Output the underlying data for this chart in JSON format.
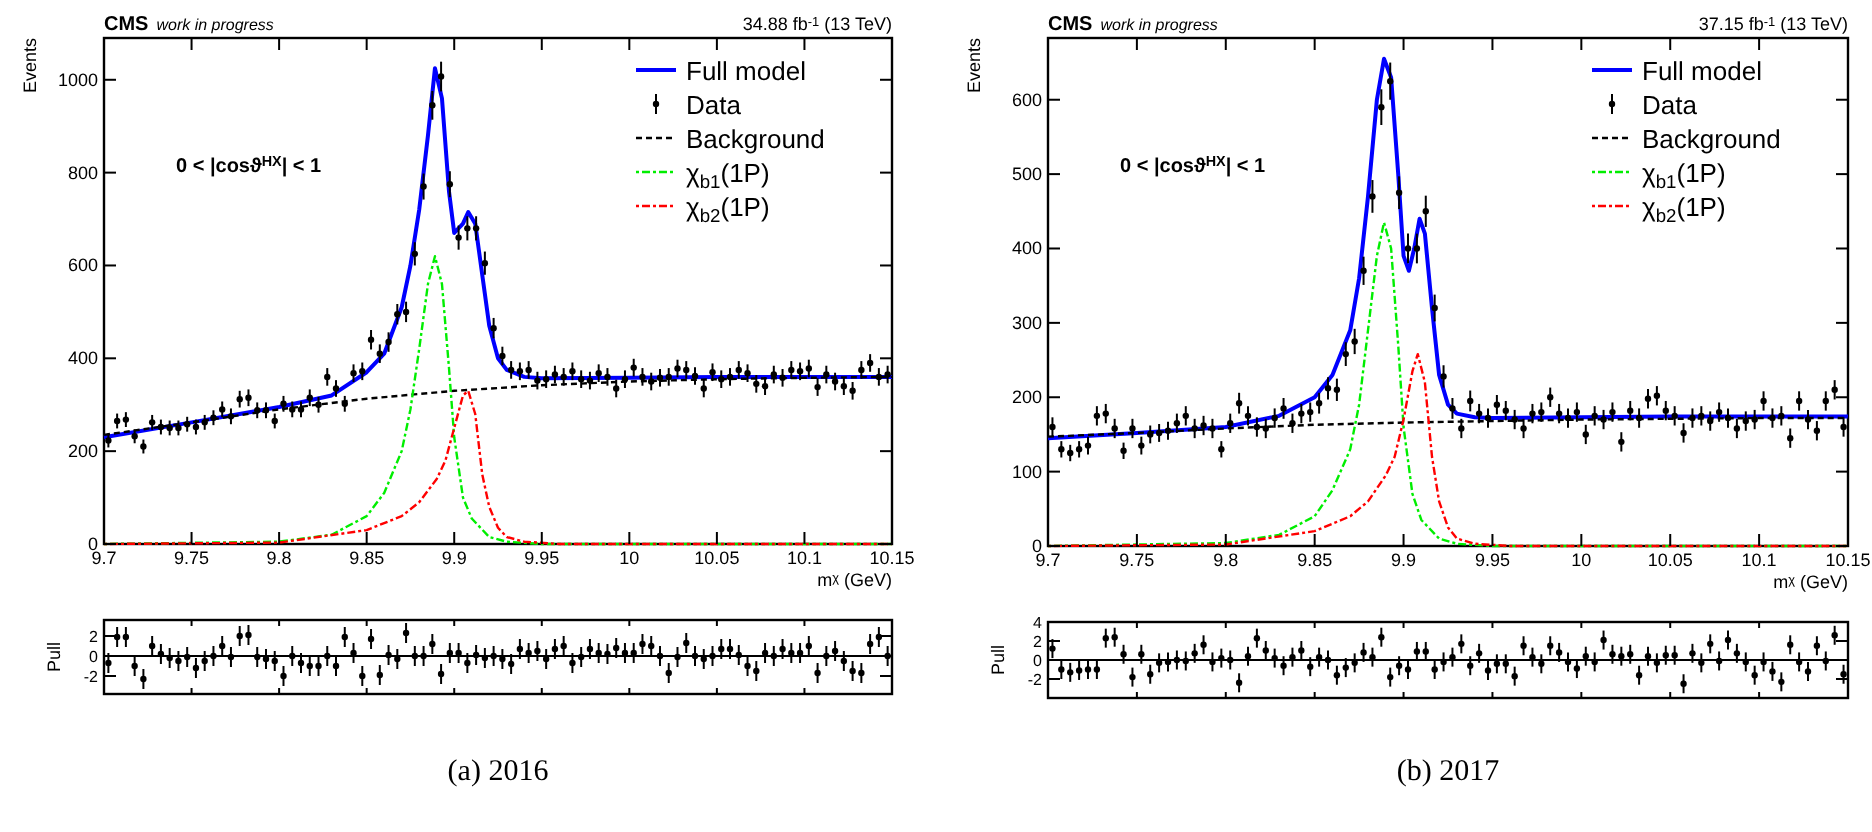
{
  "chart_data": [
    {
      "type": "scatter",
      "title": "CMS",
      "subtitle": "work in progress",
      "xlabel": "m$^{χ}$ (GeV)",
      "ylabel": "Events",
      "annotations": [
        "34.88 fb$^{-1}$ (13 TeV)",
        "0 < |cosϑ$^{HX}$| < 1",
        "(a) 2016"
      ],
      "xlim": [
        9.7,
        10.15
      ],
      "xticks": [
        9.7,
        9.75,
        9.8,
        9.85,
        9.9,
        9.95,
        10,
        10.05,
        10.1,
        10.15
      ],
      "ylim": [
        0,
        1090
      ],
      "yticks": [
        0,
        200,
        400,
        600,
        800,
        1000
      ],
      "legend": "top right",
      "series": [
        {
          "name": "Full model",
          "type": "line",
          "color": "#0000ff",
          "line_style": "solid",
          "x": [
            9.7,
            9.75,
            9.8,
            9.83,
            9.85,
            9.86,
            9.87,
            9.875,
            9.88,
            9.885,
            9.889,
            9.893,
            9.897,
            9.9,
            9.905,
            9.908,
            9.912,
            9.916,
            9.92,
            9.925,
            9.93,
            9.94,
            9.95,
            10,
            10.05,
            10.1,
            10.15
          ],
          "values": [
            230,
            262,
            295,
            320,
            370,
            410,
            510,
            600,
            720,
            880,
            1025,
            960,
            760,
            670,
            690,
            715,
            690,
            580,
            470,
            400,
            375,
            360,
            357,
            358,
            360,
            360,
            360
          ]
        },
        {
          "name": "Data",
          "color": "#000000",
          "marker": "circle",
          "x": [
            9.7025,
            9.7075,
            9.7125,
            9.7175,
            9.7225,
            9.7275,
            9.7325,
            9.7375,
            9.7425,
            9.7475,
            9.7525,
            9.7575,
            9.7625,
            9.7675,
            9.7725,
            9.7775,
            9.7825,
            9.7875,
            9.7925,
            9.7975,
            9.8025,
            9.8075,
            9.8125,
            9.8175,
            9.8225,
            9.8275,
            9.8325,
            9.8375,
            9.8425,
            9.8475,
            9.8525,
            9.8575,
            9.8625,
            9.8675,
            9.8725,
            9.8775,
            9.8825,
            9.8875,
            9.8925,
            9.8975,
            9.9025,
            9.9075,
            9.9125,
            9.9175,
            9.9225,
            9.9275,
            9.9325,
            9.9375,
            9.9425,
            9.9475,
            9.9525,
            9.9575,
            9.9625,
            9.9675,
            9.9725,
            9.9775,
            9.9825,
            9.9875,
            9.9925,
            9.9975,
            10.0025,
            10.0075,
            10.0125,
            10.0175,
            10.0225,
            10.0275,
            10.0325,
            10.0375,
            10.0425,
            10.0475,
            10.0525,
            10.0575,
            10.0625,
            10.0675,
            10.0725,
            10.0775,
            10.0825,
            10.0875,
            10.0925,
            10.0975,
            10.1025,
            10.1075,
            10.1125,
            10.1175,
            10.1225,
            10.1275,
            10.1325,
            10.1375,
            10.1425,
            10.1475
          ],
          "values": [
            223,
            265,
            268,
            232,
            210,
            262,
            252,
            250,
            250,
            258,
            252,
            262,
            272,
            290,
            275,
            312,
            315,
            288,
            288,
            265,
            302,
            290,
            290,
            315,
            300,
            360,
            335,
            302,
            368,
            372,
            440,
            410,
            435,
            495,
            500,
            625,
            770,
            945,
            1007,
            775,
            660,
            680,
            680,
            605,
            465,
            405,
            375,
            372,
            375,
            352,
            355,
            365,
            360,
            372,
            355,
            352,
            368,
            360,
            335,
            355,
            380,
            360,
            350,
            358,
            360,
            378,
            375,
            362,
            335,
            370,
            355,
            360,
            375,
            368,
            345,
            340,
            365,
            358,
            375,
            372,
            378,
            338,
            365,
            350,
            340,
            330,
            375,
            390,
            360,
            365
          ],
          "errors": [
            15,
            16,
            16,
            15,
            15,
            16,
            16,
            16,
            16,
            16,
            16,
            16,
            16,
            17,
            17,
            18,
            18,
            17,
            17,
            16,
            17,
            17,
            17,
            18,
            17,
            19,
            18,
            17,
            19,
            19,
            21,
            20,
            21,
            22,
            22,
            25,
            28,
            31,
            32,
            28,
            26,
            26,
            26,
            25,
            22,
            20,
            19,
            19,
            19,
            19,
            19,
            19,
            19,
            19,
            19,
            19,
            19,
            19,
            19,
            19,
            19,
            19,
            19,
            19,
            19,
            19,
            19,
            19,
            19,
            19,
            19,
            19,
            19,
            19,
            19,
            19,
            19,
            19,
            19,
            19,
            19,
            19,
            19,
            19,
            19,
            19,
            19,
            19,
            19,
            19
          ]
        },
        {
          "name": "Background",
          "type": "line",
          "color": "#000000",
          "line_style": "dashed",
          "x": [
            9.7,
            9.75,
            9.8,
            9.85,
            9.9,
            9.95,
            10,
            10.05,
            10.1,
            10.15
          ],
          "values": [
            235,
            262,
            290,
            313,
            330,
            342,
            350,
            355,
            358,
            360
          ]
        },
        {
          "name": "χ$_{b1}$(1P)",
          "type": "line",
          "color": "#00ee00",
          "line_style": "dotted",
          "x": [
            9.7,
            9.8,
            9.83,
            9.85,
            9.86,
            9.87,
            9.875,
            9.88,
            9.885,
            9.889,
            9.893,
            9.897,
            9.9,
            9.905,
            9.91,
            9.92,
            9.93,
            9.95,
            10.15
          ],
          "values": [
            0,
            5,
            20,
            60,
            110,
            200,
            290,
            420,
            560,
            620,
            560,
            380,
            230,
            100,
            55,
            15,
            5,
            0,
            0
          ]
        },
        {
          "name": "χ$_{b2}$(1P)",
          "type": "line",
          "color": "#ff0000",
          "line_style": "dotted",
          "x": [
            9.7,
            9.8,
            9.85,
            9.87,
            9.88,
            9.89,
            9.895,
            9.9,
            9.905,
            9.908,
            9.912,
            9.916,
            9.92,
            9.925,
            9.93,
            9.94,
            9.96,
            10.15
          ],
          "values": [
            0,
            3,
            30,
            60,
            90,
            140,
            180,
            250,
            320,
            330,
            280,
            150,
            80,
            35,
            15,
            5,
            0,
            0
          ]
        }
      ]
    },
    {
      "type": "scatter",
      "ylabel": "Pull",
      "xlim": [
        9.7,
        10.15
      ],
      "xticks": [
        9.7,
        9.75,
        9.8,
        9.85,
        9.9,
        9.95,
        10,
        10.05,
        10.1,
        10.15
      ],
      "ylim": [
        -3.8,
        3.6
      ],
      "yticks": [
        -2,
        0,
        2
      ],
      "tick_labels": "y",
      "ref_lines": [
        {
          "axis": "y",
          "value": 0,
          "color": "#000000"
        }
      ],
      "series": [
        {
          "color": "#000000",
          "marker": "circle",
          "x": [
            9.7025,
            9.7075,
            9.7125,
            9.7175,
            9.7225,
            9.7275,
            9.7325,
            9.7375,
            9.7425,
            9.7475,
            9.7525,
            9.7575,
            9.7625,
            9.7675,
            9.7725,
            9.7775,
            9.7825,
            9.7875,
            9.7925,
            9.7975,
            9.8025,
            9.8075,
            9.8125,
            9.8175,
            9.8225,
            9.8275,
            9.8325,
            9.8375,
            9.8425,
            9.8475,
            9.8525,
            9.8575,
            9.8625,
            9.8675,
            9.8725,
            9.8775,
            9.8825,
            9.8875,
            9.8925,
            9.8975,
            9.9025,
            9.9075,
            9.9125,
            9.9175,
            9.9225,
            9.9275,
            9.9325,
            9.9375,
            9.9425,
            9.9475,
            9.9525,
            9.9575,
            9.9625,
            9.9675,
            9.9725,
            9.9775,
            9.9825,
            9.9875,
            9.9925,
            9.9975,
            10.0025,
            10.0075,
            10.0125,
            10.0175,
            10.0225,
            10.0275,
            10.0325,
            10.0375,
            10.0425,
            10.0475,
            10.0525,
            10.0575,
            10.0625,
            10.0675,
            10.0725,
            10.0775,
            10.0825,
            10.0875,
            10.0925,
            10.0975,
            10.1025,
            10.1075,
            10.1125,
            10.1175,
            10.1225,
            10.1275,
            10.1325,
            10.1375,
            10.1425,
            10.1475
          ],
          "values": [
            -0.7,
            1.9,
            1.9,
            -1,
            -2.3,
            1,
            0.2,
            -0.2,
            -0.5,
            -0.1,
            -1.2,
            -0.5,
            0,
            1,
            -0.1,
            2,
            2.1,
            -0.1,
            -0.3,
            -0.5,
            -2,
            0,
            -0.7,
            -1,
            -1,
            0,
            -1,
            1.9,
            0.3,
            -2,
            1.7,
            -1.9,
            0.1,
            -0.3,
            2.3,
            0,
            0,
            1.2,
            -1.8,
            0.3,
            0.3,
            -0.7,
            0.1,
            -0.2,
            0,
            -0.3,
            -0.8,
            0.7,
            0.3,
            0.5,
            -0.3,
            0.7,
            1,
            -0.7,
            -0.1,
            0.7,
            0.3,
            0.2,
            0.8,
            0.3,
            0.3,
            1.2,
            1,
            0,
            -1.7,
            -0.1,
            1.3,
            0,
            -0.3,
            0,
            0.7,
            0.7,
            0.1,
            -1,
            -1.5,
            0.3,
            0,
            0.7,
            0.3,
            0.3,
            1,
            -1.7,
            0,
            0.5,
            -0.5,
            -1.5,
            -1.7,
            1.2,
            1.9,
            0
          ],
          "errors": [
            1,
            1,
            1,
            1,
            1,
            1,
            1,
            1,
            1,
            1,
            1,
            1,
            1,
            1,
            1,
            1,
            1,
            1,
            1,
            1,
            1,
            1,
            1,
            1,
            1,
            1,
            1,
            1,
            1,
            1,
            1,
            1,
            1,
            1,
            1,
            1,
            1,
            1,
            1,
            1,
            1,
            1,
            1,
            1,
            1,
            1,
            1,
            1,
            1,
            1,
            1,
            1,
            1,
            1,
            1,
            1,
            1,
            1,
            1,
            1,
            1,
            1,
            1,
            1,
            1,
            1,
            1,
            1,
            1,
            1,
            1,
            1,
            1,
            1,
            1,
            1,
            1,
            1,
            1,
            1,
            1,
            1,
            1,
            1,
            1,
            1,
            1,
            1,
            1,
            1
          ]
        }
      ]
    },
    {
      "type": "scatter",
      "title": "CMS",
      "subtitle": "work in progress",
      "xlabel": "m$^{χ}$ (GeV)",
      "ylabel": "Events",
      "annotations": [
        "37.15 fb$^{-1}$ (13 TeV)",
        "0 < |cosϑ$^{HX}$| < 1",
        "(b) 2017"
      ],
      "xlim": [
        9.7,
        10.15
      ],
      "xticks": [
        9.7,
        9.75,
        9.8,
        9.85,
        9.9,
        9.95,
        10,
        10.05,
        10.1,
        10.15
      ],
      "ylim": [
        0,
        683
      ],
      "yticks": [
        0,
        100,
        200,
        300,
        400,
        500,
        600
      ],
      "legend": "top right",
      "series": [
        {
          "name": "Full model",
          "type": "line",
          "color": "#0000ff",
          "line_style": "solid",
          "x": [
            9.7,
            9.75,
            9.8,
            9.83,
            9.85,
            9.86,
            9.87,
            9.875,
            9.88,
            9.885,
            9.889,
            9.893,
            9.897,
            9.9,
            9.903,
            9.906,
            9.909,
            9.912,
            9.916,
            9.92,
            9.925,
            9.93,
            9.94,
            9.95,
            10,
            10.05,
            10.1,
            10.15
          ],
          "values": [
            145,
            152,
            160,
            175,
            200,
            230,
            290,
            360,
            470,
            600,
            655,
            630,
            500,
            390,
            370,
            400,
            440,
            420,
            320,
            230,
            190,
            178,
            173,
            172,
            173,
            174,
            174,
            174
          ]
        },
        {
          "name": "Data",
          "color": "#000000",
          "marker": "circle",
          "x": [
            9.7025,
            9.7075,
            9.7125,
            9.7175,
            9.7225,
            9.7275,
            9.7325,
            9.7375,
            9.7425,
            9.7475,
            9.7525,
            9.7575,
            9.7625,
            9.7675,
            9.7725,
            9.7775,
            9.7825,
            9.7875,
            9.7925,
            9.7975,
            9.8025,
            9.8075,
            9.8125,
            9.8175,
            9.8225,
            9.8275,
            9.8325,
            9.8375,
            9.8425,
            9.8475,
            9.8525,
            9.8575,
            9.8625,
            9.8675,
            9.8725,
            9.8775,
            9.8825,
            9.8875,
            9.8925,
            9.8975,
            9.9025,
            9.9075,
            9.9125,
            9.9175,
            9.9225,
            9.9275,
            9.9325,
            9.9375,
            9.9425,
            9.9475,
            9.9525,
            9.9575,
            9.9625,
            9.9675,
            9.9725,
            9.9775,
            9.9825,
            9.9875,
            9.9925,
            9.9975,
            10.0025,
            10.0075,
            10.0125,
            10.0175,
            10.0225,
            10.0275,
            10.0325,
            10.0375,
            10.0425,
            10.0475,
            10.0525,
            10.0575,
            10.0625,
            10.0675,
            10.0725,
            10.0775,
            10.0825,
            10.0875,
            10.0925,
            10.0975,
            10.1025,
            10.1075,
            10.1125,
            10.1175,
            10.1225,
            10.1275,
            10.1325,
            10.1375,
            10.1425,
            10.1475
          ],
          "values": [
            160,
            130,
            125,
            130,
            135,
            175,
            178,
            158,
            128,
            158,
            135,
            150,
            152,
            155,
            165,
            175,
            158,
            162,
            158,
            130,
            165,
            192,
            175,
            160,
            158,
            172,
            185,
            165,
            178,
            180,
            192,
            212,
            210,
            258,
            275,
            370,
            470,
            590,
            625,
            475,
            400,
            400,
            450,
            320,
            228,
            185,
            158,
            195,
            178,
            172,
            190,
            182,
            170,
            158,
            178,
            180,
            200,
            178,
            172,
            180,
            150,
            175,
            170,
            180,
            140,
            182,
            172,
            198,
            202,
            182,
            175,
            152,
            172,
            175,
            168,
            180,
            172,
            158,
            168,
            170,
            195,
            172,
            175,
            145,
            195,
            170,
            155,
            195,
            210,
            160
          ],
          "errors": [
            13,
            11,
            11,
            11,
            12,
            13,
            13,
            13,
            11,
            13,
            12,
            12,
            12,
            12,
            13,
            13,
            13,
            13,
            13,
            11,
            13,
            14,
            13,
            13,
            13,
            13,
            14,
            13,
            13,
            13,
            14,
            15,
            15,
            16,
            17,
            19,
            22,
            24,
            25,
            22,
            20,
            20,
            21,
            18,
            15,
            14,
            13,
            14,
            13,
            13,
            13,
            13,
            13,
            13,
            13,
            13,
            13,
            13,
            13,
            13,
            13,
            13,
            13,
            13,
            13,
            13,
            13,
            13,
            13,
            13,
            13,
            13,
            13,
            13,
            13,
            13,
            13,
            13,
            13,
            13,
            13,
            13,
            13,
            13,
            13,
            13,
            13,
            13,
            13,
            13
          ]
        },
        {
          "name": "Background",
          "type": "line",
          "color": "#000000",
          "line_style": "dashed",
          "x": [
            9.7,
            9.75,
            9.8,
            9.85,
            9.9,
            9.95,
            10,
            10.05,
            10.1,
            10.15
          ],
          "values": [
            147,
            152,
            158,
            163,
            166,
            168,
            170,
            171,
            172,
            172
          ]
        },
        {
          "name": "χ$_{b1}$(1P)",
          "type": "line",
          "color": "#00ee00",
          "line_style": "dotted",
          "x": [
            9.7,
            9.8,
            9.83,
            9.85,
            9.86,
            9.87,
            9.875,
            9.88,
            9.885,
            9.889,
            9.893,
            9.897,
            9.9,
            9.905,
            9.91,
            9.92,
            9.93,
            9.95,
            10.15
          ],
          "values": [
            0,
            4,
            15,
            40,
            75,
            130,
            190,
            290,
            390,
            435,
            400,
            270,
            160,
            70,
            35,
            10,
            3,
            0,
            0
          ]
        },
        {
          "name": "χ$_{b2}$(1P)",
          "type": "line",
          "color": "#ff0000",
          "line_style": "dotted",
          "x": [
            9.7,
            9.8,
            9.85,
            9.87,
            9.88,
            9.89,
            9.895,
            9.9,
            9.905,
            9.908,
            9.912,
            9.916,
            9.92,
            9.925,
            9.93,
            9.94,
            9.96,
            10.15
          ],
          "values": [
            0,
            2,
            20,
            40,
            60,
            95,
            120,
            170,
            235,
            258,
            220,
            120,
            60,
            25,
            10,
            3,
            0,
            0
          ]
        }
      ]
    },
    {
      "type": "scatter",
      "ylabel": "Pull",
      "xlim": [
        9.7,
        10.15
      ],
      "xticks": [
        9.7,
        9.75,
        9.8,
        9.85,
        9.9,
        9.95,
        10,
        10.05,
        10.1,
        10.15
      ],
      "ylim": [
        -4,
        4
      ],
      "yticks": [
        -2,
        0,
        2,
        4
      ],
      "tick_labels": "y",
      "ref_lines": [
        {
          "axis": "y",
          "value": 0,
          "color": "#000000"
        }
      ],
      "series": [
        {
          "color": "#000000",
          "marker": "circle",
          "x": [
            9.7025,
            9.7075,
            9.7125,
            9.7175,
            9.7225,
            9.7275,
            9.7325,
            9.7375,
            9.7425,
            9.7475,
            9.7525,
            9.7575,
            9.7625,
            9.7675,
            9.7725,
            9.7775,
            9.7825,
            9.7875,
            9.7925,
            9.7975,
            9.8025,
            9.8075,
            9.8125,
            9.8175,
            9.8225,
            9.8275,
            9.8325,
            9.8375,
            9.8425,
            9.8475,
            9.8525,
            9.8575,
            9.8625,
            9.8675,
            9.8725,
            9.8775,
            9.8825,
            9.8875,
            9.8925,
            9.8975,
            9.9025,
            9.9075,
            9.9125,
            9.9175,
            9.9225,
            9.9275,
            9.9325,
            9.9375,
            9.9425,
            9.9475,
            9.9525,
            9.9575,
            9.9625,
            9.9675,
            9.9725,
            9.9775,
            9.9825,
            9.9875,
            9.9925,
            9.9975,
            10.0025,
            10.0075,
            10.0125,
            10.0175,
            10.0225,
            10.0275,
            10.0325,
            10.0375,
            10.0425,
            10.0475,
            10.0525,
            10.0575,
            10.0625,
            10.0675,
            10.0725,
            10.0775,
            10.0825,
            10.0875,
            10.0925,
            10.0975,
            10.1025,
            10.1075,
            10.1125,
            10.1175,
            10.1225,
            10.1275,
            10.1325,
            10.1375,
            10.1425,
            10.1475
          ],
          "values": [
            1.2,
            -1,
            -1.3,
            -1.1,
            -1,
            -1,
            2.3,
            2.4,
            0.6,
            -1.8,
            0.6,
            -1.5,
            -0.3,
            -0.2,
            0,
            -0.1,
            0.7,
            1.6,
            -0.2,
            0.2,
            0,
            -2.4,
            0.4,
            2.3,
            1,
            0.2,
            -0.6,
            0.3,
            1,
            -0.7,
            0.3,
            0,
            -1.6,
            -0.8,
            -0.3,
            0.8,
            0.3,
            2.4,
            -1.8,
            -0.6,
            -1,
            0.9,
            0.9,
            -1,
            -0.2,
            0.3,
            1.7,
            -0.6,
            0.7,
            -1.1,
            -0.4,
            -0.4,
            -1.7,
            1.5,
            0.3,
            -0.4,
            1.5,
            0.8,
            -0.2,
            -0.9,
            0.4,
            -0.2,
            2.1,
            0.6,
            0.4,
            0.6,
            -1.6,
            0.4,
            -0.3,
            0.5,
            0.5,
            -2.5,
            0.7,
            -0.3,
            1.7,
            -0.1,
            2.1,
            0.7,
            -0.2,
            -1.6,
            -0.2,
            -1.2,
            -2.3,
            1.6,
            -0.2,
            -1.2,
            1.5,
            -0.1,
            2.6,
            -1.5
          ],
          "errors": [
            1,
            1,
            1,
            1,
            1,
            1,
            1,
            1,
            1,
            1,
            1,
            1,
            1,
            1,
            1,
            1,
            1,
            1,
            1,
            1,
            1,
            1,
            1,
            1,
            1,
            1,
            1,
            1,
            1,
            1,
            1,
            1,
            1,
            1,
            1,
            1,
            1,
            1,
            1,
            1,
            1,
            1,
            1,
            1,
            1,
            1,
            1,
            1,
            1,
            1,
            1,
            1,
            1,
            1,
            1,
            1,
            1,
            1,
            1,
            1,
            1,
            1,
            1,
            1,
            1,
            1,
            1,
            1,
            1,
            1,
            1,
            1,
            1,
            1,
            1,
            1,
            1,
            1,
            1,
            1,
            1,
            1,
            1,
            1,
            1,
            1,
            1,
            1,
            1,
            1
          ]
        }
      ]
    }
  ]
}
